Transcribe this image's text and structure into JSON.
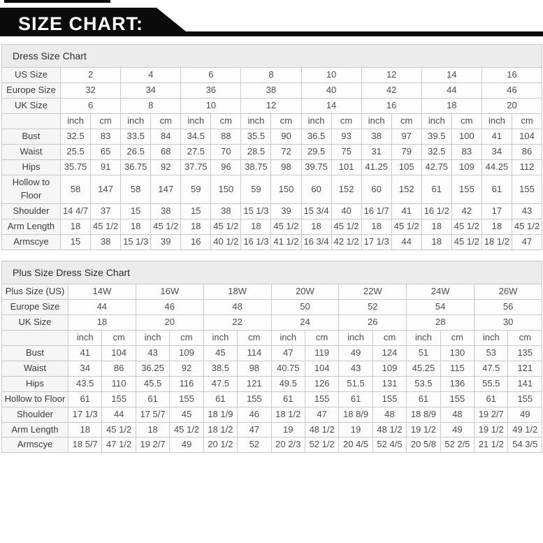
{
  "banner": {
    "title": "SIZE CHART:",
    "bg_color": "#0b0b0b",
    "text_color": "#ffffff"
  },
  "colors": {
    "table_border": "#c9c9c9",
    "section_title_bg": "#ececec",
    "label_cell_bg": "#f6f6f6",
    "cell_bg": "#fdfdfd",
    "cell_text": "#4d4d4d"
  },
  "tables": [
    {
      "title": "Dress Size Chart",
      "unit_labels": [
        "inch",
        "cm"
      ],
      "size_rows": [
        {
          "label": "US Size",
          "values": [
            "2",
            "4",
            "6",
            "8",
            "10",
            "12",
            "14",
            "16"
          ]
        },
        {
          "label": "Europe Size",
          "values": [
            "32",
            "34",
            "36",
            "38",
            "40",
            "42",
            "44",
            "46"
          ]
        },
        {
          "label": "UK Size",
          "values": [
            "6",
            "8",
            "10",
            "12",
            "14",
            "16",
            "18",
            "20"
          ]
        }
      ],
      "measure_rows": [
        {
          "label": "Bust",
          "pairs": [
            [
              "32.5",
              "83"
            ],
            [
              "33.5",
              "84"
            ],
            [
              "34.5",
              "88"
            ],
            [
              "35.5",
              "90"
            ],
            [
              "36.5",
              "93"
            ],
            [
              "38",
              "97"
            ],
            [
              "39.5",
              "100"
            ],
            [
              "41",
              "104"
            ]
          ]
        },
        {
          "label": "Waist",
          "pairs": [
            [
              "25.5",
              "65"
            ],
            [
              "26.5",
              "68"
            ],
            [
              "27.5",
              "70"
            ],
            [
              "28.5",
              "72"
            ],
            [
              "29.5",
              "75"
            ],
            [
              "31",
              "79"
            ],
            [
              "32.5",
              "83"
            ],
            [
              "34",
              "86"
            ]
          ]
        },
        {
          "label": "Hips",
          "pairs": [
            [
              "35.75",
              "91"
            ],
            [
              "36.75",
              "92"
            ],
            [
              "37.75",
              "96"
            ],
            [
              "38.75",
              "98"
            ],
            [
              "39.75",
              "101"
            ],
            [
              "41.25",
              "105"
            ],
            [
              "42.75",
              "109"
            ],
            [
              "44.25",
              "112"
            ]
          ]
        },
        {
          "label": "Hollow to Floor",
          "pairs": [
            [
              "58",
              "147"
            ],
            [
              "58",
              "147"
            ],
            [
              "59",
              "150"
            ],
            [
              "59",
              "150"
            ],
            [
              "60",
              "152"
            ],
            [
              "60",
              "152"
            ],
            [
              "61",
              "155"
            ],
            [
              "61",
              "155"
            ]
          ]
        },
        {
          "label": "Shoulder",
          "pairs": [
            [
              "14 4/7",
              "37"
            ],
            [
              "15",
              "38"
            ],
            [
              "15",
              "38"
            ],
            [
              "15 1/3",
              "39"
            ],
            [
              "15 3/4",
              "40"
            ],
            [
              "16 1/7",
              "41"
            ],
            [
              "16 1/2",
              "42"
            ],
            [
              "17",
              "43"
            ]
          ]
        },
        {
          "label": "Arm Length",
          "pairs": [
            [
              "18",
              "45 1/2"
            ],
            [
              "18",
              "45 1/2"
            ],
            [
              "18",
              "45 1/2"
            ],
            [
              "18",
              "45 1/2"
            ],
            [
              "18",
              "45 1/2"
            ],
            [
              "18",
              "45 1/2"
            ],
            [
              "18",
              "45 1/2"
            ],
            [
              "18",
              "45 1/2"
            ]
          ]
        },
        {
          "label": "Armscye",
          "pairs": [
            [
              "15",
              "38"
            ],
            [
              "15 1/3",
              "39"
            ],
            [
              "16",
              "40 1/2"
            ],
            [
              "16 1/3",
              "41 1/2"
            ],
            [
              "16 3/4",
              "42 1/2"
            ],
            [
              "17 1/3",
              "44"
            ],
            [
              "18",
              "45 1/2"
            ],
            [
              "18 1/2",
              "47"
            ]
          ]
        }
      ]
    },
    {
      "title": "Plus Size Dress Size Chart",
      "unit_labels": [
        "inch",
        "cm"
      ],
      "size_rows": [
        {
          "label": "Plus Size (US)",
          "values": [
            "14W",
            "16W",
            "18W",
            "20W",
            "22W",
            "24W",
            "26W"
          ]
        },
        {
          "label": "Europe Size",
          "values": [
            "44",
            "46",
            "48",
            "50",
            "52",
            "54",
            "56"
          ]
        },
        {
          "label": "UK Size",
          "values": [
            "18",
            "20",
            "22",
            "24",
            "26",
            "28",
            "30"
          ]
        }
      ],
      "measure_rows": [
        {
          "label": "Bust",
          "pairs": [
            [
              "41",
              "104"
            ],
            [
              "43",
              "109"
            ],
            [
              "45",
              "114"
            ],
            [
              "47",
              "119"
            ],
            [
              "49",
              "124"
            ],
            [
              "51",
              "130"
            ],
            [
              "53",
              "135"
            ]
          ]
        },
        {
          "label": "Waist",
          "pairs": [
            [
              "34",
              "86"
            ],
            [
              "36.25",
              "92"
            ],
            [
              "38.5",
              "98"
            ],
            [
              "40.75",
              "104"
            ],
            [
              "43",
              "109"
            ],
            [
              "45.25",
              "115"
            ],
            [
              "47.5",
              "121"
            ]
          ]
        },
        {
          "label": "Hips",
          "pairs": [
            [
              "43.5",
              "110"
            ],
            [
              "45.5",
              "116"
            ],
            [
              "47.5",
              "121"
            ],
            [
              "49.5",
              "126"
            ],
            [
              "51.5",
              "131"
            ],
            [
              "53.5",
              "136"
            ],
            [
              "55.5",
              "141"
            ]
          ]
        },
        {
          "label": "Hollow to Floor",
          "pairs": [
            [
              "61",
              "155"
            ],
            [
              "61",
              "155"
            ],
            [
              "61",
              "155"
            ],
            [
              "61",
              "155"
            ],
            [
              "61",
              "155"
            ],
            [
              "61",
              "155"
            ],
            [
              "61",
              "155"
            ]
          ]
        },
        {
          "label": "Shoulder",
          "pairs": [
            [
              "17 1/3",
              "44"
            ],
            [
              "17 5/7",
              "45"
            ],
            [
              "18 1/9",
              "46"
            ],
            [
              "18 1/2",
              "47"
            ],
            [
              "18 8/9",
              "48"
            ],
            [
              "18 8/9",
              "48"
            ],
            [
              "19 2/7",
              "49"
            ]
          ]
        },
        {
          "label": "Arm Length",
          "pairs": [
            [
              "18",
              "45 1/2"
            ],
            [
              "18",
              "45 1/2"
            ],
            [
              "18 1/2",
              "47"
            ],
            [
              "19",
              "48 1/2"
            ],
            [
              "19",
              "48 1/2"
            ],
            [
              "19 1/2",
              "49"
            ],
            [
              "19 1/2",
              "49 1/2"
            ]
          ]
        },
        {
          "label": "Armscye",
          "pairs": [
            [
              "18 5/7",
              "47 1/2"
            ],
            [
              "19 2/7",
              "49"
            ],
            [
              "20 1/2",
              "52"
            ],
            [
              "20 2/3",
              "52 1/2"
            ],
            [
              "20 4/5",
              "52 4/5"
            ],
            [
              "20 5/8",
              "52 2/5"
            ],
            [
              "21 1/2",
              "54 3/5"
            ]
          ]
        }
      ]
    }
  ]
}
